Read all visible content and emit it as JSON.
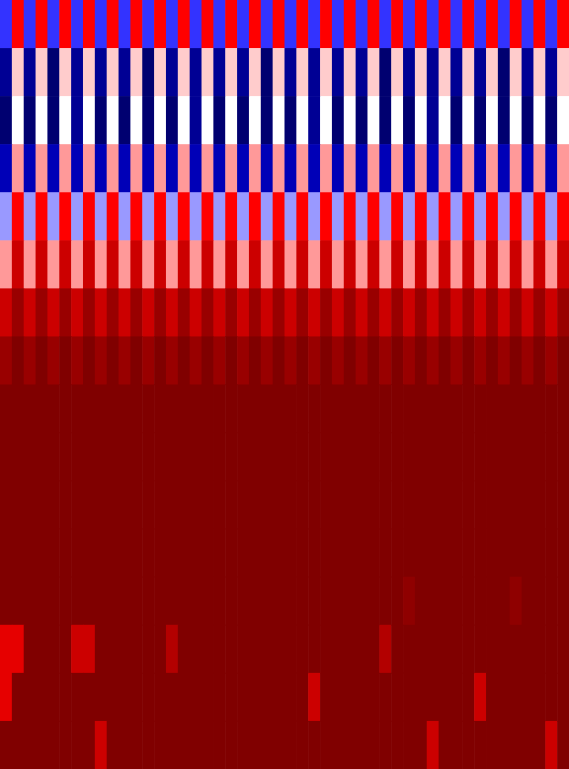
{
  "chart_data": {
    "type": "heatmap",
    "tick_labels": false,
    "zlim": [
      0,
      1
    ],
    "cells": [
      [
        0.3,
        0.75,
        0.3,
        0.75,
        0.3,
        0.75,
        0.3,
        0.75,
        0.3,
        0.75,
        0.3,
        0.75,
        0.3,
        0.75,
        0.3,
        0.75,
        0.3,
        0.75,
        0.3,
        0.75,
        0.3,
        0.75,
        0.3,
        0.75,
        0.3,
        0.75,
        0.3,
        0.75,
        0.3,
        0.75,
        0.3,
        0.75,
        0.3,
        0.75,
        0.3,
        0.75,
        0.3,
        0.75,
        0.3,
        0.75,
        0.3,
        0.75,
        0.3,
        0.75,
        0.3,
        0.75,
        0.3,
        0.75
      ],
      [
        0.1,
        0.55,
        0.1,
        0.55,
        0.05,
        0.55,
        0.1,
        0.55,
        0.1,
        0.55,
        0.1,
        0.55,
        0.05,
        0.55,
        0.1,
        0.55,
        0.1,
        0.55,
        0.1,
        0.55,
        0.1,
        0.55,
        0.05,
        0.55,
        0.1,
        0.55,
        0.1,
        0.55,
        0.1,
        0.55,
        0.1,
        0.55,
        0.05,
        0.55,
        0.1,
        0.55,
        0.1,
        0.55,
        0.1,
        0.55,
        0.1,
        0.55,
        0.05,
        0.55,
        0.1,
        0.55,
        0.1,
        0.55
      ],
      [
        0.05,
        0.5,
        0.05,
        0.5,
        0.05,
        0.5,
        0.1,
        0.5,
        0.05,
        0.5,
        0.05,
        0.5,
        0.05,
        0.5,
        0.05,
        0.5,
        0.1,
        0.5,
        0.05,
        0.5,
        0.05,
        0.5,
        0.05,
        0.5,
        0.05,
        0.5,
        0.1,
        0.5,
        0.05,
        0.5,
        0.05,
        0.5,
        0.05,
        0.5,
        0.05,
        0.5,
        0.1,
        0.5,
        0.05,
        0.5,
        0.05,
        0.5,
        0.05,
        0.5,
        0.05,
        0.5,
        0.05,
        0.5
      ],
      [
        0.15,
        0.6,
        0.15,
        0.6,
        0.15,
        0.6,
        0.15,
        0.6,
        0.15,
        0.6,
        0.15,
        0.6,
        0.15,
        0.6,
        0.15,
        0.6,
        0.15,
        0.6,
        0.15,
        0.6,
        0.15,
        0.6,
        0.15,
        0.6,
        0.15,
        0.6,
        0.15,
        0.6,
        0.15,
        0.6,
        0.15,
        0.6,
        0.15,
        0.6,
        0.15,
        0.6,
        0.15,
        0.6,
        0.15,
        0.6,
        0.15,
        0.6,
        0.15,
        0.6,
        0.15,
        0.6,
        0.15,
        0.6
      ],
      [
        0.4,
        0.75,
        0.4,
        0.75,
        0.4,
        0.75,
        0.4,
        0.75,
        0.4,
        0.75,
        0.4,
        0.75,
        0.4,
        0.75,
        0.4,
        0.75,
        0.4,
        0.75,
        0.4,
        0.75,
        0.4,
        0.75,
        0.4,
        0.75,
        0.4,
        0.75,
        0.4,
        0.75,
        0.4,
        0.75,
        0.4,
        0.75,
        0.4,
        0.75,
        0.4,
        0.75,
        0.4,
        0.75,
        0.4,
        0.75,
        0.4,
        0.75,
        0.4,
        0.75,
        0.4,
        0.75,
        0.4,
        0.75
      ],
      [
        0.6,
        0.85,
        0.6,
        0.85,
        0.6,
        0.85,
        0.6,
        0.85,
        0.6,
        0.85,
        0.6,
        0.85,
        0.6,
        0.85,
        0.6,
        0.85,
        0.6,
        0.85,
        0.6,
        0.85,
        0.6,
        0.85,
        0.6,
        0.85,
        0.6,
        0.85,
        0.6,
        0.85,
        0.6,
        0.85,
        0.6,
        0.85,
        0.6,
        0.85,
        0.6,
        0.85,
        0.6,
        0.85,
        0.6,
        0.85,
        0.6,
        0.85,
        0.6,
        0.85,
        0.6,
        0.85,
        0.6,
        0.85
      ],
      [
        0.85,
        0.95,
        0.85,
        0.95,
        0.85,
        0.95,
        0.85,
        0.95,
        0.85,
        0.95,
        0.85,
        0.95,
        0.85,
        0.95,
        0.85,
        0.95,
        0.85,
        0.95,
        0.85,
        0.95,
        0.85,
        0.95,
        0.85,
        0.95,
        0.85,
        0.95,
        0.85,
        0.95,
        0.85,
        0.95,
        0.85,
        0.95,
        0.85,
        0.95,
        0.85,
        0.95,
        0.85,
        0.95,
        0.85,
        0.95,
        0.85,
        0.95,
        0.85,
        0.95,
        0.85,
        0.95,
        0.85,
        0.95
      ],
      [
        0.95,
        1,
        0.95,
        1,
        0.95,
        1,
        0.95,
        1,
        0.95,
        1,
        0.95,
        1,
        0.95,
        1,
        0.95,
        1,
        0.95,
        1,
        0.95,
        1,
        0.95,
        1,
        0.95,
        1,
        0.95,
        1,
        0.95,
        1,
        0.95,
        1,
        0.95,
        1,
        0.95,
        1,
        0.95,
        1,
        0.95,
        1,
        0.95,
        1,
        0.95,
        1,
        0.95,
        1,
        0.95,
        1,
        0.95,
        1
      ],
      [
        1,
        1,
        1,
        1,
        1,
        1,
        1,
        1,
        1,
        1,
        1,
        1,
        1,
        1,
        1,
        1,
        1,
        1,
        1,
        1,
        1,
        1,
        1,
        1,
        1,
        1,
        1,
        1,
        1,
        1,
        1,
        1,
        1,
        1,
        1,
        1,
        1,
        1,
        1,
        1,
        1,
        1,
        1,
        1,
        1,
        1,
        1,
        1
      ],
      [
        1,
        1,
        1,
        1,
        1,
        1,
        1,
        1,
        1,
        1,
        1,
        1,
        1,
        1,
        1,
        1,
        1,
        1,
        1,
        1,
        1,
        1,
        1,
        1,
        1,
        1,
        1,
        1,
        1,
        1,
        1,
        1,
        1,
        1,
        1,
        1,
        1,
        1,
        1,
        1,
        1,
        1,
        1,
        1,
        1,
        1,
        1,
        1
      ],
      [
        1,
        1,
        1,
        1,
        1,
        1,
        1,
        1,
        1,
        1,
        1,
        1,
        1,
        1,
        1,
        1,
        1,
        1,
        1,
        1,
        1,
        1,
        1,
        1,
        1,
        1,
        1,
        1,
        1,
        1,
        1,
        1,
        1,
        1,
        1,
        1,
        1,
        1,
        1,
        1,
        1,
        1,
        1,
        1,
        1,
        1,
        1,
        1
      ],
      [
        1,
        1,
        1,
        1,
        1,
        1,
        1,
        1,
        1,
        1,
        1,
        1,
        1,
        1,
        1,
        1,
        1,
        1,
        1,
        1,
        1,
        1,
        1,
        1,
        1,
        1,
        1,
        1,
        1,
        1,
        1,
        1,
        1,
        1,
        1,
        1,
        1,
        1,
        1,
        1,
        1,
        1,
        1,
        1,
        1,
        1,
        1,
        1
      ],
      [
        1,
        1,
        1,
        1,
        1,
        1,
        1,
        1,
        1,
        1,
        1,
        1,
        1,
        1,
        1,
        1,
        1,
        1,
        1,
        1,
        1,
        1,
        1,
        1,
        1,
        1,
        1,
        1,
        1,
        1,
        1,
        1,
        1,
        1,
        0.97,
        1,
        1,
        1,
        1,
        1,
        1,
        1,
        1,
        0.97,
        1,
        1,
        1,
        1
      ],
      [
        0.8,
        0.8,
        1,
        1,
        1,
        1,
        0.85,
        0.85,
        1,
        1,
        1,
        1,
        1,
        1,
        0.9,
        1,
        1,
        1,
        1,
        1,
        1,
        1,
        1,
        1,
        1,
        1,
        1,
        1,
        1,
        1,
        1,
        1,
        0.9,
        1,
        1,
        1,
        1,
        1,
        1,
        1,
        1,
        1,
        1,
        1,
        1,
        1,
        1,
        1
      ],
      [
        0.8,
        1,
        1,
        1,
        1,
        1,
        1,
        1,
        1,
        1,
        1,
        1,
        1,
        1,
        1,
        1,
        1,
        1,
        1,
        1,
        1,
        1,
        1,
        1,
        1,
        1,
        0.85,
        1,
        1,
        1,
        1,
        1,
        1,
        1,
        1,
        1,
        1,
        1,
        1,
        1,
        0.85,
        1,
        1,
        1,
        1,
        1,
        1,
        1
      ],
      [
        1,
        1,
        1,
        1,
        1,
        1,
        1,
        1,
        0.85,
        1,
        1,
        1,
        1,
        1,
        1,
        1,
        1,
        1,
        1,
        1,
        1,
        1,
        1,
        1,
        1,
        1,
        1,
        1,
        1,
        1,
        1,
        1,
        1,
        1,
        1,
        1,
        0.85,
        1,
        1,
        1,
        1,
        1,
        1,
        1,
        1,
        1,
        0.85,
        1
      ]
    ]
  }
}
